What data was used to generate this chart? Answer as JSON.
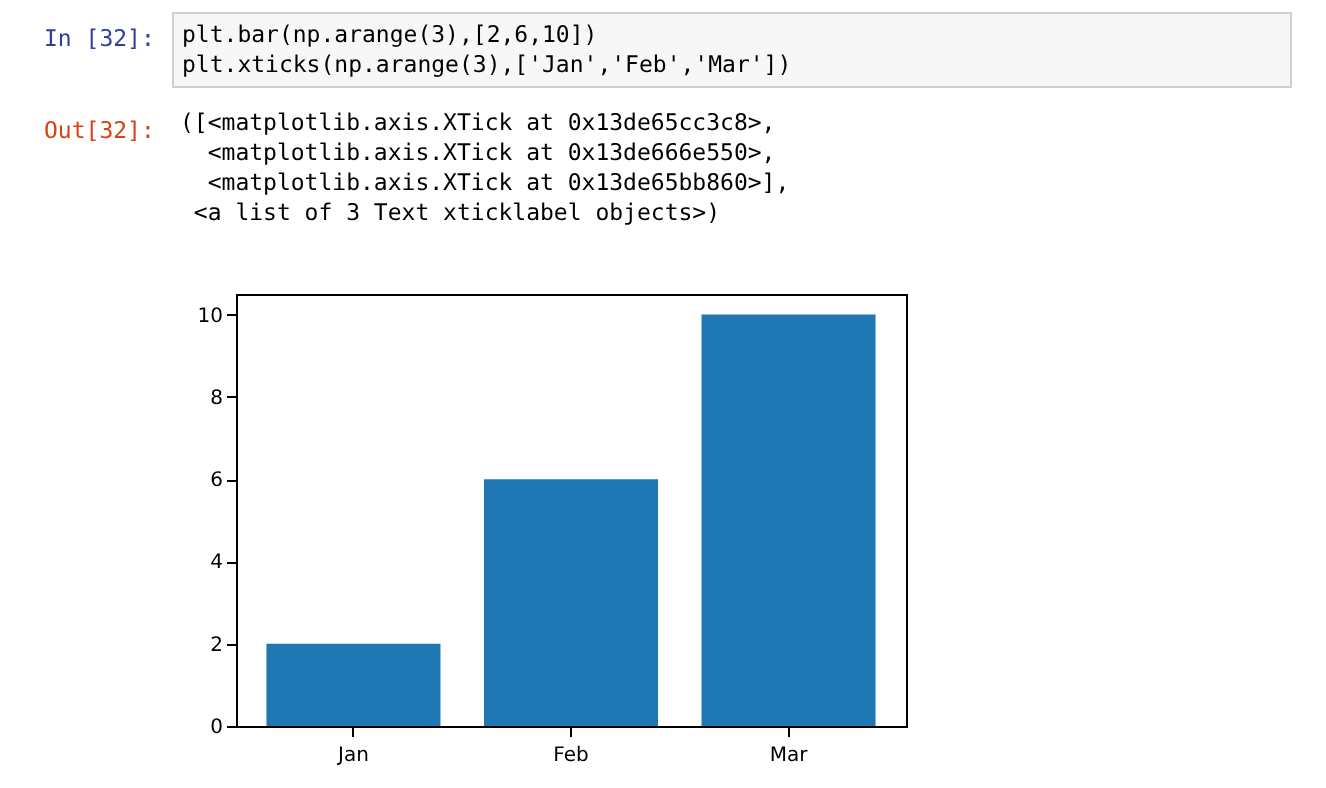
{
  "chart_data": {
    "type": "bar",
    "categories": [
      "Jan",
      "Feb",
      "Mar"
    ],
    "values": [
      2,
      6,
      10
    ],
    "color": "#1f77b4",
    "ylim": [
      0,
      10.5
    ],
    "yticks": [
      0,
      2,
      4,
      6,
      8,
      10
    ],
    "grid": false,
    "annotations": [
      "In [32]:",
      "plt.bar(np.arange(3),[2,6,10])\nplt.xticks(np.arange(3),['Jan','Feb','Mar'])",
      "Out[32]:",
      "([<matplotlib.axis.XTick at 0x13de65cc3c8>,\n  <matplotlib.axis.XTick at 0x13de666e550>,\n  <matplotlib.axis.XTick at 0x13de65bb860>],\n <a list of 3 Text xticklabel objects>)"
    ]
  }
}
